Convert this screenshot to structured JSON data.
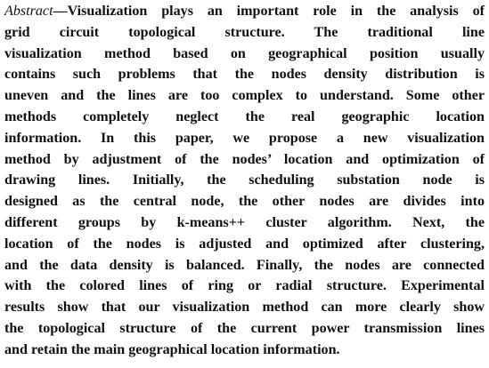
{
  "abstract": {
    "label": "Abstract",
    "lines": [
      "—Visualization plays an important role in the analysis of",
      "grid circuit topological structure. The traditional line",
      "visualization method based on geographical position usually",
      "contains such problems that the nodes density distribution is",
      "uneven and the lines are too complex to understand. Some other",
      "methods completely neglect the real geographic location",
      "information. In this paper, we propose a new visualization",
      "method by adjustment of the nodes’ location and optimization of",
      "drawing lines. Initially, the scheduling substation node is",
      "designed as the central node, the other nodes are divides into",
      "different groups by k-means++ cluster algorithm. Next, the",
      "location of the nodes is adjusted and optimized after clustering,",
      "and the data density is balanced. Finally, the nodes are connected",
      "with the colored lines of ring or radial structure. Experimental",
      "results show that our visualization method can more clearly show",
      "the topological structure of the current power transmission lines",
      "and retain the main geographical location information."
    ]
  }
}
